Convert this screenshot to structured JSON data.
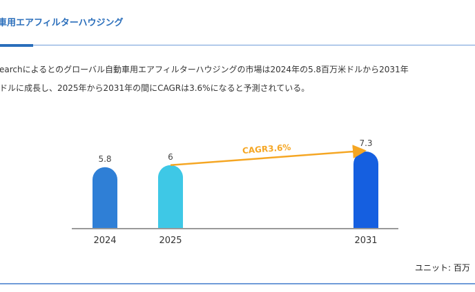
{
  "header": {
    "title": "車用エアフィルターハウジング"
  },
  "description": {
    "line1": "earchによるとのグローバル自動車用エアフィルターハウジングの市場は2024年の5.8百万米ドルから2031年",
    "line2": "ドルに成長し、2025年から2031年の間にCAGRは3.6%になると予測されている。"
  },
  "chart_data": {
    "type": "bar",
    "categories": [
      "2024",
      "2025",
      "2031"
    ],
    "values": [
      5.8,
      6,
      7.3
    ],
    "value_labels": [
      "5.8",
      "6",
      "7.3"
    ],
    "colors": [
      "#2f7fd6",
      "#3ec8e6",
      "#155fe0"
    ],
    "annotation": {
      "text": "CAGR3.6%",
      "from": "2025",
      "to": "2031",
      "color": "#f5a623"
    },
    "ylim": [
      0,
      7.3
    ],
    "grid": false,
    "unit_label": "ユニット: 百万"
  }
}
